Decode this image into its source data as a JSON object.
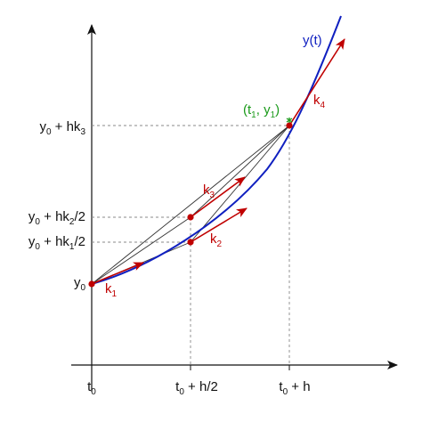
{
  "diagram": {
    "colors": {
      "axis": "#111111",
      "guide": "#888888",
      "chord": "#333333",
      "curve": "#1020c0",
      "slope": "#c00000",
      "endpoint": "#1a9a1a"
    },
    "y_labels": {
      "y_hk3": {
        "base": "y",
        "sub": "0",
        "rest": " + hk",
        "sub2": "3",
        "tail": ""
      },
      "y_hk2": {
        "base": "y",
        "sub": "0",
        "rest": " + hk",
        "sub2": "2",
        "tail": "/2"
      },
      "y_hk1": {
        "base": "y",
        "sub": "0",
        "rest": " + hk",
        "sub2": "1",
        "tail": "/2"
      },
      "y0": {
        "base": "y",
        "sub": "0",
        "rest": "",
        "sub2": "",
        "tail": ""
      }
    },
    "t_labels": {
      "t0": {
        "base": "t",
        "sub": "0",
        "rest": ""
      },
      "tmid": {
        "base": "t",
        "sub": "0",
        "rest": " + h/2"
      },
      "tend": {
        "base": "t",
        "sub": "0",
        "rest": " + h"
      }
    },
    "curve_label": "y(t)",
    "endpoint_label": {
      "open": "(t",
      "sub1": "1",
      "mid": ", y",
      "sub2": "1",
      "close": ")"
    },
    "slopes": {
      "k1": {
        "base": "k",
        "sub": "1"
      },
      "k2": {
        "base": "k",
        "sub": "2"
      },
      "k3": {
        "base": "k",
        "sub": "3"
      },
      "k4": {
        "base": "k",
        "sub": "4"
      }
    }
  }
}
